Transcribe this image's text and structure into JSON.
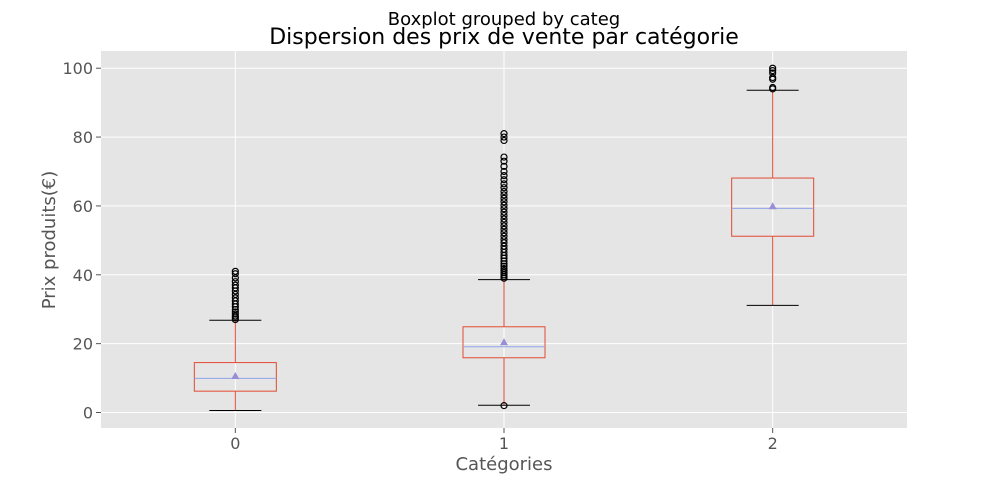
{
  "chart_data": {
    "type": "boxplot",
    "suptitle": "Boxplot grouped by categ",
    "title": "Dispersion des prix de vente par catégorie",
    "xlabel": "Catégories",
    "ylabel": "Prix produits(€)",
    "categories": [
      "0",
      "1",
      "2"
    ],
    "ylim": [
      -4.5,
      105
    ],
    "yticks": [
      0,
      20,
      40,
      60,
      80,
      100
    ],
    "grid": true,
    "colors": {
      "background": "#e5e5e5",
      "grid": "#ffffff",
      "box": "#e24a33",
      "median": "#8ea5e8",
      "mean_marker": "#988ed5",
      "caps": "#000000",
      "tick_text": "#555555"
    },
    "boxes": [
      {
        "category": "0",
        "whisker_low": 0.6,
        "q1": 6.2,
        "median": 9.9,
        "q3": 14.5,
        "whisker_high": 26.8,
        "mean": 10.6,
        "outliers": [
          27.0,
          27.5,
          28.0,
          28.6,
          29.2,
          29.9,
          30.7,
          31.5,
          32.4,
          33.3,
          34.3,
          35.3,
          36.2,
          37.0,
          38.0,
          39.1,
          40.3,
          41.0
        ]
      },
      {
        "category": "1",
        "whisker_low": 2.1,
        "q1": 15.9,
        "median": 19.1,
        "q3": 24.9,
        "whisker_high": 38.6,
        "mean": 20.4,
        "outliers": [
          2.0,
          39.0,
          39.5,
          40.0,
          40.6,
          41.2,
          41.8,
          42.5,
          43.2,
          44.0,
          44.8,
          45.6,
          46.5,
          47.4,
          48.3,
          49.3,
          50.2,
          51.2,
          52.2,
          53.2,
          54.2,
          55.2,
          56.2,
          57.2,
          58.2,
          59.2,
          60.2,
          61.2,
          62.2,
          63.2,
          64.2,
          65.3,
          66.4,
          67.6,
          68.8,
          70.0,
          71.5,
          73.0,
          74.2,
          79.0,
          80.0,
          81.0
        ]
      },
      {
        "category": "2",
        "whisker_low": 31.1,
        "q1": 51.2,
        "median": 59.3,
        "q3": 68.1,
        "whisker_high": 93.6,
        "mean": 59.9,
        "outliers": [
          94.0,
          94.4,
          96.8,
          97.3,
          98.6,
          99.3,
          100.0
        ]
      }
    ]
  }
}
